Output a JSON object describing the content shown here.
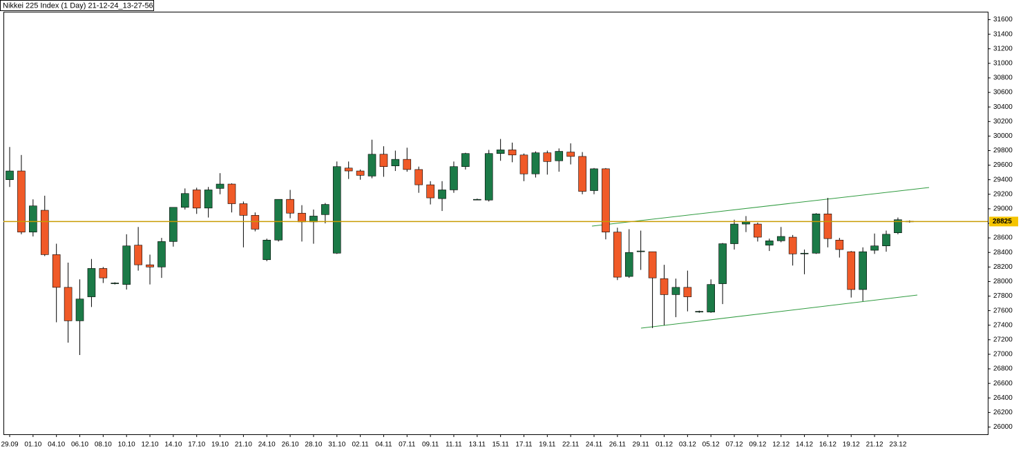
{
  "chart_data": {
    "type": "candlestick",
    "title": "Nikkei 225 Index (1 Day) 21-12-24_13-27-56",
    "categories": [
      "29.09",
      null,
      "01.10",
      null,
      "04.10",
      null,
      "06.10",
      null,
      "08.10",
      null,
      "10.10",
      null,
      "12.10",
      null,
      "14.10",
      null,
      "17.10",
      null,
      "19.10",
      null,
      "21.10",
      null,
      "24.10",
      null,
      "26.10",
      null,
      "28.10",
      null,
      "31.10",
      null,
      "02.11",
      null,
      "04.11",
      null,
      "07.11",
      null,
      "09.11",
      null,
      "11.11",
      null,
      "13.11",
      null,
      "15.11",
      null,
      "17.11",
      null,
      "19.11",
      null,
      "22.11",
      null,
      "24.11",
      null,
      "26.11",
      null,
      "29.11",
      null,
      "01.12",
      null,
      "03.12",
      null,
      "05.12",
      null,
      "07.12",
      null,
      "09.12",
      null,
      "12.12",
      null,
      "14.12",
      null,
      "16.12",
      null,
      "19.12",
      null,
      "21.12",
      null,
      "23.12",
      null
    ],
    "open": [
      29400,
      29520,
      28680,
      28980,
      28370,
      27920,
      27460,
      27790,
      28180,
      27970,
      27960,
      28500,
      28230,
      28200,
      28550,
      29020,
      29260,
      29010,
      29280,
      29340,
      29070,
      28910,
      28300,
      28570,
      29130,
      28940,
      28820,
      28920,
      28390,
      29560,
      29520,
      29450,
      29750,
      29590,
      29680,
      29540,
      29330,
      29140,
      29260,
      29580,
      29130,
      29120,
      29760,
      29810,
      29740,
      29480,
      29770,
      29660,
      29780,
      29720,
      29250,
      29550,
      28680,
      28070,
      28410,
      28410,
      28040,
      27820,
      27920,
      27580,
      27580,
      27970,
      28520,
      28790,
      28790,
      28500,
      28560,
      28610,
      28380,
      28390,
      28930,
      28570,
      28410,
      27890,
      28430,
      28490,
      28670,
      28825
    ],
    "high": [
      29850,
      29740,
      29130,
      29180,
      28520,
      28260,
      28030,
      28310,
      28200,
      27990,
      28650,
      28750,
      28370,
      28600,
      29020,
      29280,
      29290,
      29300,
      29490,
      29350,
      29100,
      28950,
      28590,
      29130,
      29260,
      29050,
      28990,
      29080,
      29650,
      29650,
      29540,
      29950,
      29860,
      29800,
      29840,
      29580,
      29380,
      29380,
      29650,
      29770,
      29140,
      29810,
      29960,
      29910,
      29760,
      29790,
      29800,
      29830,
      29900,
      29780,
      29560,
      29560,
      28740,
      28720,
      28700,
      28410,
      28230,
      28040,
      28150,
      27600,
      28030,
      28530,
      28850,
      28900,
      28810,
      28590,
      28750,
      28640,
      28440,
      28940,
      29150,
      28600,
      28420,
      28470,
      28660,
      28700,
      28880,
      28840
    ],
    "low": [
      29300,
      28650,
      28620,
      28350,
      27440,
      27160,
      26990,
      27650,
      27980,
      27960,
      27890,
      28150,
      27960,
      28050,
      28480,
      28990,
      28930,
      28880,
      29200,
      28950,
      28470,
      28690,
      28280,
      28550,
      28870,
      28550,
      28520,
      28800,
      28380,
      29410,
      29400,
      29420,
      29440,
      29520,
      29510,
      29220,
      29060,
      28970,
      29220,
      29540,
      29120,
      29100,
      29660,
      29640,
      29380,
      29430,
      29470,
      29510,
      29610,
      29200,
      29200,
      28580,
      28020,
      28050,
      28160,
      27360,
      27400,
      27510,
      27590,
      27570,
      27570,
      27690,
      28440,
      28680,
      28550,
      28420,
      28540,
      28220,
      28100,
      28380,
      28470,
      28330,
      27780,
      27730,
      28380,
      28410,
      28650,
      28810
    ],
    "close": [
      29520,
      28680,
      29040,
      28370,
      27920,
      27460,
      27760,
      28180,
      28050,
      27980,
      28490,
      28230,
      28200,
      28550,
      29020,
      29210,
      29010,
      29260,
      29340,
      29070,
      28910,
      28720,
      28570,
      29130,
      28940,
      28820,
      28900,
      29060,
      29580,
      29520,
      29460,
      29750,
      29580,
      29680,
      29540,
      29330,
      29150,
      29260,
      29580,
      29760,
      29130,
      29760,
      29810,
      29740,
      29480,
      29770,
      29650,
      29790,
      29720,
      29240,
      29550,
      28680,
      28060,
      28400,
      28420,
      28050,
      27820,
      27920,
      27790,
      27590,
      27960,
      28520,
      28790,
      28820,
      28610,
      28560,
      28620,
      28380,
      28390,
      28930,
      28590,
      28440,
      27890,
      28410,
      28490,
      28650,
      28850,
      28830
    ],
    "up_color": "#1b7a47",
    "down_color": "#f05a28",
    "last_price": 28825,
    "last_price_color": "#c89b00",
    "ylim": [
      25900,
      31700
    ],
    "yticks": [
      26000,
      26200,
      26400,
      26600,
      26800,
      27000,
      27200,
      27400,
      27600,
      27800,
      28000,
      28200,
      28400,
      28600,
      28800,
      29000,
      29200,
      29400,
      29600,
      29800,
      30000,
      30200,
      30400,
      30600,
      30800,
      31000,
      31200,
      31400,
      31600
    ]
  }
}
